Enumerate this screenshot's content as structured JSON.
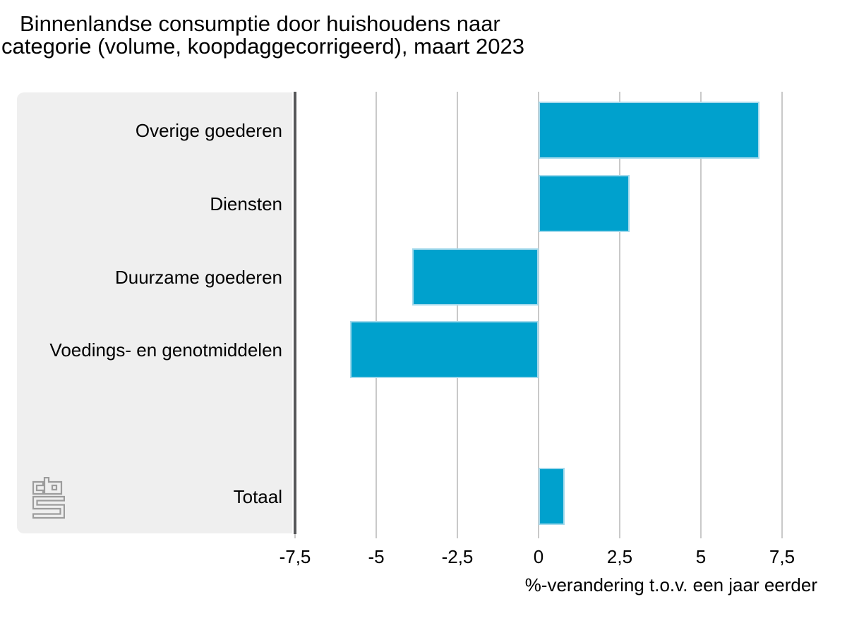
{
  "title": {
    "lines": [
      "Binnenlandse consumptie door huishoudens naar",
      "categorie (volume, koopdaggecorrigeerd), maart 2023"
    ]
  },
  "chart_data": {
    "type": "bar",
    "orientation": "horizontal",
    "title": "Binnenlandse consumptie door huishoudens naar categorie (volume, koopdaggecorrigeerd), maart 2023",
    "categories": [
      "Overige goederen",
      "Diensten",
      "Duurzame goederen",
      "Voedings- en genotmiddelen",
      "Totaal"
    ],
    "values": [
      6.8,
      2.8,
      -3.9,
      -5.8,
      0.8
    ],
    "unit": "%",
    "xlabel": "%-verandering t.o.v. een jaar eerder",
    "xlim": [
      -7.5,
      9.5
    ],
    "xticks": [
      -7.5,
      -5,
      -2.5,
      0,
      2.5,
      5,
      7.5
    ],
    "xtick_labels": [
      "-7,5",
      "-5",
      "-2,5",
      "0",
      "2,5",
      "5",
      "7,5"
    ],
    "grid": true,
    "legend": false,
    "bar_color": "#00a1cd"
  },
  "branding": {
    "logo_name": "cbs-logo"
  },
  "colors": {
    "page_background": "#ffffff",
    "panel_background": "#efefef",
    "bar": "#00a1cd",
    "bar_border": "#a5daec",
    "axis_line": "#57585a",
    "gridline": "#c9c9c9",
    "logo": "#9c9c9c",
    "text": "#000000"
  }
}
